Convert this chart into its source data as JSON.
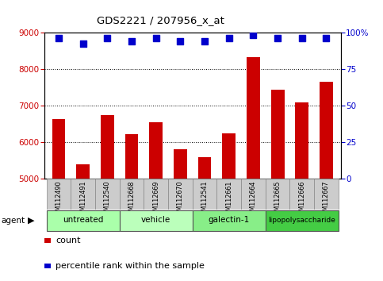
{
  "title": "GDS2221 / 207956_x_at",
  "samples": [
    "GSM112490",
    "GSM112491",
    "GSM112540",
    "GSM112668",
    "GSM112669",
    "GSM112670",
    "GSM112541",
    "GSM112661",
    "GSM112664",
    "GSM112665",
    "GSM112666",
    "GSM112667"
  ],
  "counts": [
    6620,
    5380,
    6730,
    6220,
    6540,
    5810,
    5580,
    6240,
    8320,
    7430,
    7080,
    7650
  ],
  "percentile_ranks": [
    96,
    92,
    96,
    94,
    96,
    94,
    94,
    96,
    98,
    96,
    96,
    96
  ],
  "bar_color": "#cc0000",
  "dot_color": "#0000cc",
  "ylim_left": [
    5000,
    9000
  ],
  "ylim_right": [
    0,
    100
  ],
  "yticks_left": [
    5000,
    6000,
    7000,
    8000,
    9000
  ],
  "yticks_right": [
    0,
    25,
    50,
    75,
    100
  ],
  "right_tick_labels": [
    "0",
    "25",
    "50",
    "75",
    "100%"
  ],
  "groups": [
    {
      "label": "untreated",
      "start": 0,
      "end": 3,
      "color": "#aaffaa"
    },
    {
      "label": "vehicle",
      "start": 3,
      "end": 6,
      "color": "#bbffbb"
    },
    {
      "label": "galectin-1",
      "start": 6,
      "end": 9,
      "color": "#88ee88"
    },
    {
      "label": "lipopolysaccharide",
      "start": 9,
      "end": 12,
      "color": "#44cc44"
    }
  ],
  "agent_label": "agent",
  "legend_count_label": "count",
  "legend_pct_label": "percentile rank within the sample",
  "grid_color": "#000000",
  "background_color": "#ffffff",
  "xlabel_bg": "#cccccc"
}
